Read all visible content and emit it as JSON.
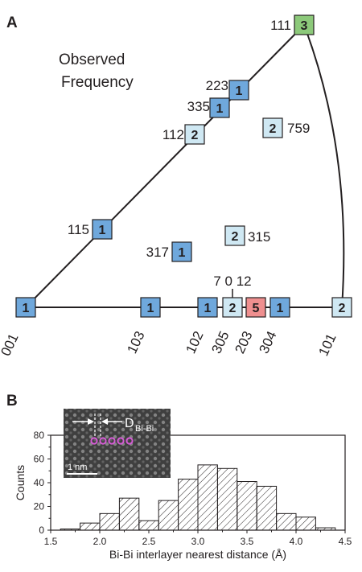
{
  "panel_a": {
    "letter": "A",
    "title_line1": "Observed",
    "title_line2": "Frequency"
  },
  "panel_b": {
    "letter": "B",
    "inset": {
      "symbol": "D",
      "subscript": "Bi-Bi",
      "scalebar": "1 nm"
    }
  },
  "colors": {
    "blue": "#6fa8dc",
    "light_blue": "#cfe8f3",
    "pink": "#ef8f8f",
    "green": "#8cc97a"
  },
  "chart_data": [
    {
      "type": "scatter",
      "title": "Observed Frequency",
      "points": [
        {
          "label": "001",
          "count": "1",
          "kind": "blue"
        },
        {
          "label": "103",
          "count": "1",
          "kind": "blue"
        },
        {
          "label": "102",
          "count": "1",
          "kind": "blue"
        },
        {
          "label": "305",
          "count": "2",
          "kind": "light_blue"
        },
        {
          "label": "203",
          "count": "5",
          "kind": "pink"
        },
        {
          "label": "304",
          "count": "1",
          "kind": "blue"
        },
        {
          "label": "101",
          "count": "2",
          "kind": "light_blue"
        },
        {
          "label": "111",
          "count": "3",
          "kind": "green"
        },
        {
          "label": "223",
          "count": "1",
          "kind": "blue"
        },
        {
          "label": "335",
          "count": "1",
          "kind": "blue"
        },
        {
          "label": "112",
          "count": "2",
          "kind": "light_blue"
        },
        {
          "label": "115",
          "count": "1",
          "kind": "blue"
        },
        {
          "label": "759",
          "count": "2",
          "kind": "light_blue"
        },
        {
          "label": "317",
          "count": "1",
          "kind": "blue"
        },
        {
          "label": "315",
          "count": "2",
          "kind": "light_blue"
        },
        {
          "label": "7 0 12",
          "count": "2",
          "kind": "light_blue"
        }
      ]
    },
    {
      "type": "bar",
      "xlabel": "Bi-Bi interlayer nearest distance (Å)",
      "ylabel": "Counts",
      "xlim": [
        1.5,
        4.5
      ],
      "ylim": [
        0,
        80
      ],
      "x_ticks": [
        "1.5",
        "2.0",
        "2.5",
        "3.0",
        "3.5",
        "4.0",
        "4.5"
      ],
      "y_ticks": [
        "0",
        "20",
        "40",
        "60",
        "80"
      ],
      "bin_width": 0.2,
      "bins": [
        {
          "x0": 1.6,
          "value": 1
        },
        {
          "x0": 1.8,
          "value": 6
        },
        {
          "x0": 2.0,
          "value": 14
        },
        {
          "x0": 2.2,
          "value": 27
        },
        {
          "x0": 2.4,
          "value": 8
        },
        {
          "x0": 2.6,
          "value": 25
        },
        {
          "x0": 2.8,
          "value": 43
        },
        {
          "x0": 3.0,
          "value": 55
        },
        {
          "x0": 3.2,
          "value": 52
        },
        {
          "x0": 3.4,
          "value": 41
        },
        {
          "x0": 3.6,
          "value": 37
        },
        {
          "x0": 3.8,
          "value": 14
        },
        {
          "x0": 4.0,
          "value": 11
        },
        {
          "x0": 4.2,
          "value": 2
        }
      ]
    }
  ]
}
